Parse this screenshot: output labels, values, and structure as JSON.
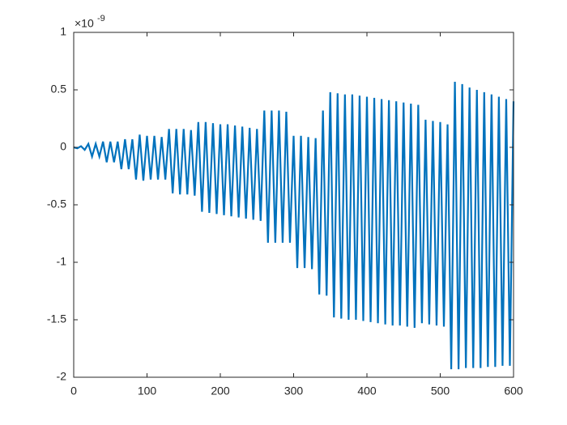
{
  "chart_data": {
    "type": "line",
    "y_scale_label": {
      "base": "×10",
      "exponent": "-9"
    },
    "x": [
      0,
      5,
      10,
      15,
      20,
      25,
      30,
      35,
      40,
      45,
      50,
      55,
      60,
      65,
      70,
      75,
      80,
      85,
      90,
      95,
      100,
      105,
      110,
      115,
      120,
      125,
      130,
      135,
      140,
      145,
      150,
      155,
      160,
      165,
      170,
      175,
      180,
      185,
      190,
      195,
      200,
      205,
      210,
      215,
      220,
      225,
      230,
      235,
      240,
      245,
      250,
      255,
      260,
      265,
      270,
      275,
      280,
      285,
      290,
      295,
      300,
      305,
      310,
      315,
      320,
      325,
      330,
      335,
      340,
      345,
      350,
      355,
      360,
      365,
      370,
      375,
      380,
      385,
      390,
      395,
      400,
      405,
      410,
      415,
      420,
      425,
      430,
      435,
      440,
      445,
      450,
      455,
      460,
      465,
      470,
      475,
      480,
      485,
      490,
      495,
      500,
      505,
      510,
      515,
      520,
      525,
      530,
      535,
      540,
      545,
      550,
      555,
      560,
      565,
      570,
      575,
      580,
      585,
      590,
      595,
      600
    ],
    "series": [
      {
        "color": "#0072bd",
        "values": [
          0,
          -0.008,
          0.01,
          -0.022,
          0.03,
          -0.08,
          0.03,
          -0.08,
          0.05,
          -0.13,
          0.05,
          -0.13,
          0.05,
          -0.19,
          0.07,
          -0.19,
          0.07,
          -0.28,
          0.11,
          -0.29,
          0.1,
          -0.28,
          0.1,
          -0.28,
          0.09,
          -0.28,
          0.16,
          -0.4,
          0.16,
          -0.41,
          0.16,
          -0.41,
          0.15,
          -0.42,
          0.22,
          -0.56,
          0.22,
          -0.57,
          0.21,
          -0.58,
          0.2,
          -0.59,
          0.2,
          -0.6,
          0.19,
          -0.61,
          0.18,
          -0.62,
          0.17,
          -0.63,
          0.16,
          -0.64,
          0.32,
          -0.83,
          0.32,
          -0.83,
          0.32,
          -0.83,
          0.31,
          -0.83,
          0.1,
          -1.05,
          0.1,
          -1.05,
          0.09,
          -1.06,
          0.08,
          -1.28,
          0.32,
          -1.29,
          0.48,
          -1.48,
          0.47,
          -1.49,
          0.46,
          -1.5,
          0.46,
          -1.5,
          0.45,
          -1.51,
          0.44,
          -1.52,
          0.43,
          -1.53,
          0.42,
          -1.54,
          0.41,
          -1.55,
          0.4,
          -1.55,
          0.39,
          -1.56,
          0.38,
          -1.57,
          0.37,
          -1.53,
          0.24,
          -1.54,
          0.23,
          -1.55,
          0.22,
          -1.56,
          0.2,
          -1.93,
          0.57,
          -1.93,
          0.55,
          -1.92,
          0.52,
          -1.92,
          0.5,
          -1.92,
          0.48,
          -1.91,
          0.46,
          -1.91,
          0.44,
          -1.9,
          0.42,
          -1.9,
          0.4
        ]
      }
    ],
    "xlim": [
      0,
      600
    ],
    "xticks": [
      0,
      100,
      200,
      300,
      400,
      500,
      600
    ],
    "ylim": [
      -2,
      1
    ],
    "yticks": [
      -2,
      -1.5,
      -1,
      -0.5,
      0,
      0.5,
      1
    ],
    "grid": false,
    "box": true
  }
}
